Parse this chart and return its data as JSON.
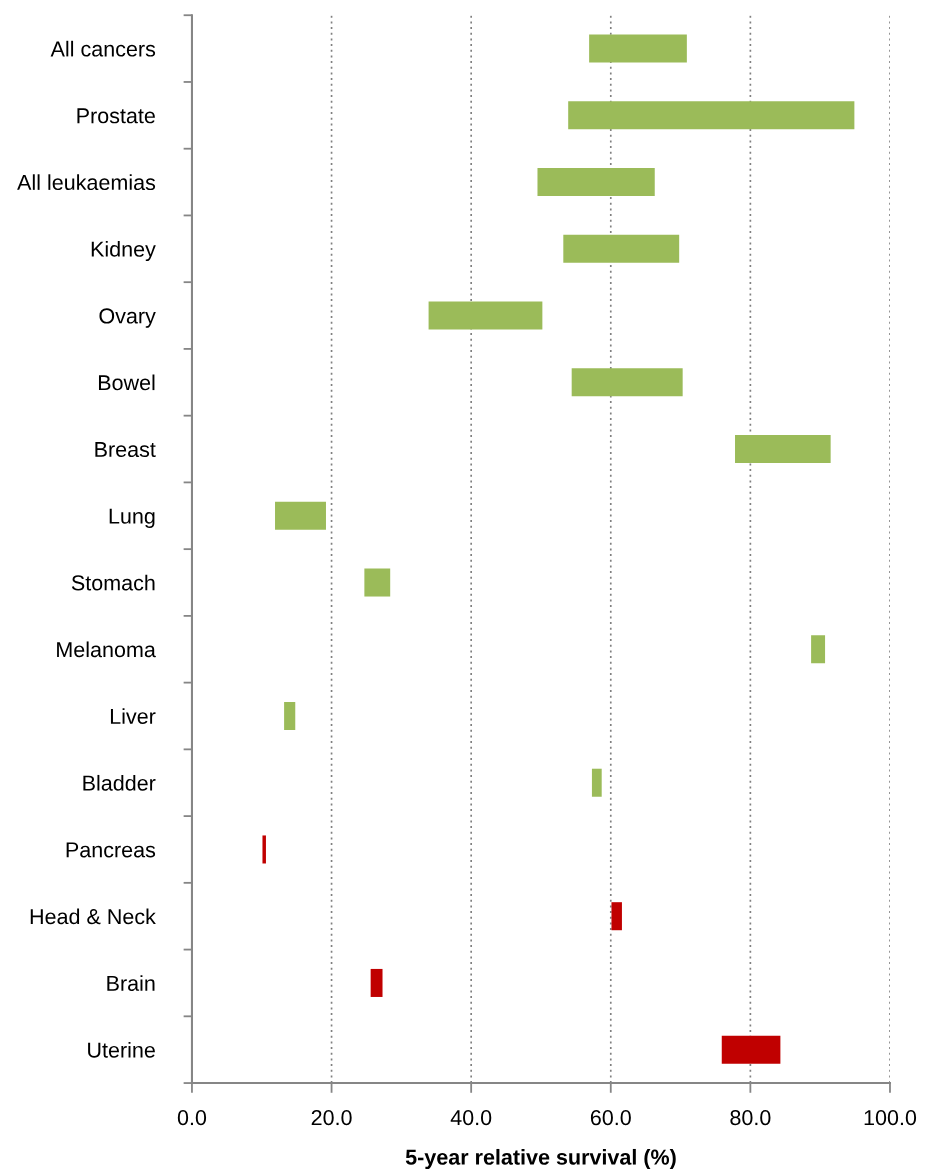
{
  "chart_data": {
    "type": "bar",
    "orientation": "horizontal",
    "categories": [
      "All cancers",
      "Prostate",
      "All leukaemias",
      "Kidney",
      "Ovary",
      "Bowel",
      "Breast",
      "Lung",
      "Stomach",
      "Melanoma",
      "Liver",
      "Bladder",
      "Pancreas",
      "Head & Neck",
      "Brain",
      "Uterine"
    ],
    "base": [
      56.9,
      53.9,
      49.5,
      53.2,
      33.9,
      54.4,
      77.8,
      11.9,
      24.7,
      88.7,
      13.2,
      57.3,
      10.1,
      60.1,
      25.6,
      75.9
    ],
    "values": [
      14.0,
      41.0,
      16.8,
      16.6,
      16.3,
      15.9,
      13.7,
      7.3,
      3.7,
      2.0,
      1.6,
      1.4,
      0.5,
      1.5,
      1.7,
      8.4
    ],
    "colors": [
      "#9bbb59",
      "#9bbb59",
      "#9bbb59",
      "#9bbb59",
      "#9bbb59",
      "#9bbb59",
      "#9bbb59",
      "#9bbb59",
      "#9bbb59",
      "#9bbb59",
      "#9bbb59",
      "#9bbb59",
      "#c00000",
      "#c00000",
      "#c00000",
      "#c00000"
    ],
    "xlabel": "5-year relative survival (%)",
    "xlim": [
      0,
      100
    ],
    "xticks": [
      {
        "value": 0,
        "label": "0.0"
      },
      {
        "value": 20,
        "label": "20.0"
      },
      {
        "value": 40,
        "label": "40.0"
      },
      {
        "value": 60,
        "label": "60.0"
      },
      {
        "value": 80,
        "label": "80.0"
      },
      {
        "value": 100,
        "label": "100.0"
      }
    ],
    "grid": "x",
    "legend": false
  }
}
